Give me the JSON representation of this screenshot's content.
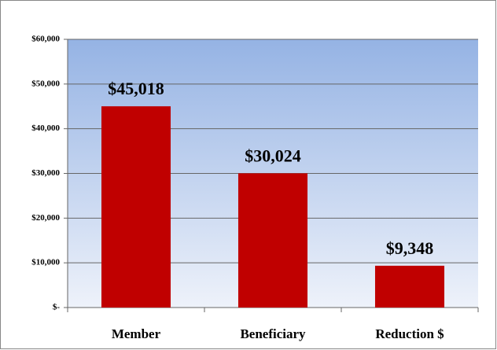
{
  "chart_data": {
    "type": "bar",
    "categories": [
      "Member",
      "Beneficiary",
      "Reduction $"
    ],
    "values": [
      45018,
      30024,
      9348
    ],
    "value_labels": [
      "$45,018",
      "$30,024",
      "$9,348"
    ],
    "color": "#c00000",
    "ylim": [
      0,
      60000
    ],
    "yticks": [
      {
        "value": 0,
        "label": "$-"
      },
      {
        "value": 10000,
        "label": "$10,000"
      },
      {
        "value": 20000,
        "label": "$20,000"
      },
      {
        "value": 30000,
        "label": "$30,000"
      },
      {
        "value": 40000,
        "label": "$40,000"
      },
      {
        "value": 50000,
        "label": "$50,000"
      },
      {
        "value": 60000,
        "label": "$60,000"
      }
    ],
    "grid": true
  }
}
